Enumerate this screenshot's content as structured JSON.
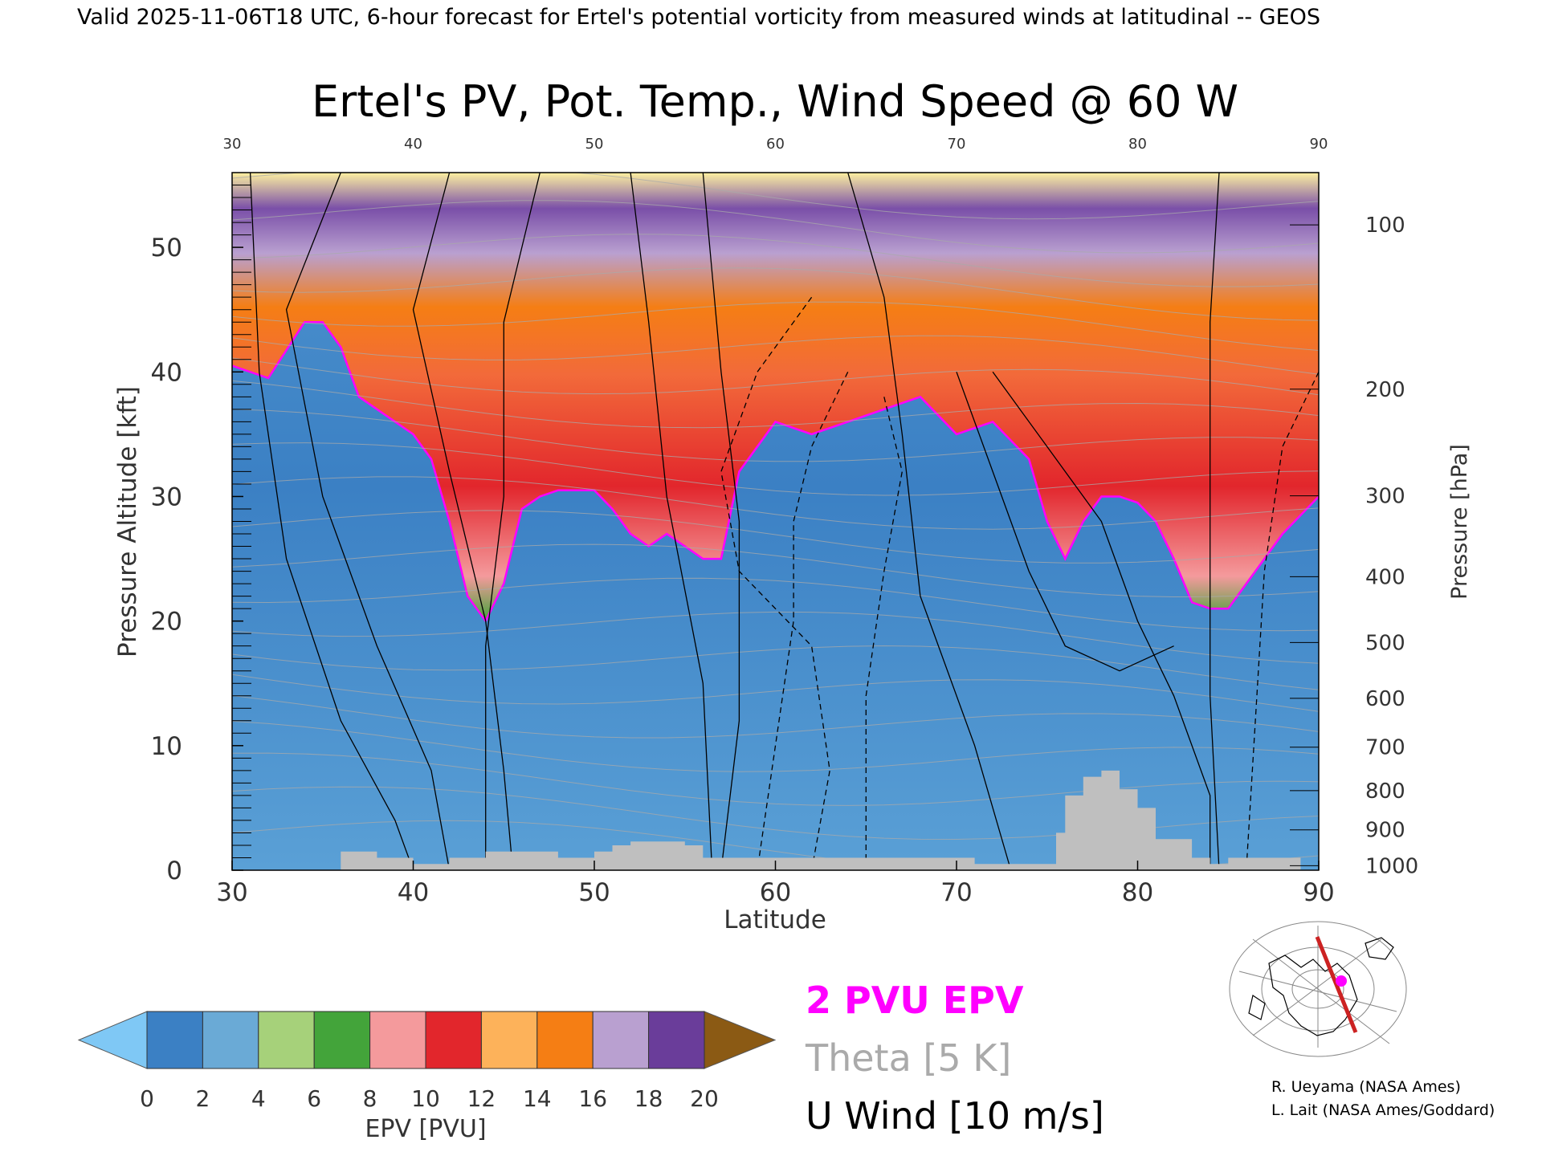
{
  "header": {
    "valid_line": "Valid 2025-11-06T18 UTC, 6-hour forecast for Ertel's potential vorticity from measured winds at latitudinal -- GEOS"
  },
  "chart_data": {
    "type": "heatmap",
    "title": "Ertel's PV, Pot. Temp., Wind Speed @ 60 W",
    "xlabel": "Latitude",
    "ylabel": "Pressure Altitude [kft]",
    "y2label": "Pressure [hPa]",
    "xlim": [
      30,
      90
    ],
    "ylim": [
      0,
      56
    ],
    "x_ticks": [
      30,
      40,
      50,
      60,
      70,
      80,
      90
    ],
    "top_x_ticks": [
      30,
      40,
      50,
      60,
      70,
      80,
      90
    ],
    "y_ticks": [
      0,
      10,
      20,
      30,
      40,
      50
    ],
    "pressure_ticks": [
      1000,
      900,
      800,
      700,
      600,
      500,
      400,
      300,
      200,
      100
    ],
    "colorbar": {
      "label": "EPV [PVU]",
      "ticks": [
        0,
        2,
        4,
        6,
        8,
        10,
        12,
        14,
        16,
        18,
        20
      ],
      "colors": [
        "#3b80c4",
        "#6aaad6",
        "#a6d17a",
        "#43a43a",
        "#f49a9c",
        "#e2262c",
        "#fdb25a",
        "#f57e14",
        "#b9a0d0",
        "#6a3d9a",
        "#fdf5a0"
      ],
      "under_color": "#7fc8f5",
      "over_color": "#8b5a14"
    },
    "tropopause_line": [
      [
        30,
        40.5
      ],
      [
        32,
        39.5
      ],
      [
        34,
        44
      ],
      [
        35,
        44
      ],
      [
        36,
        42
      ],
      [
        37,
        38
      ],
      [
        38,
        37
      ],
      [
        40,
        35
      ],
      [
        41,
        33
      ],
      [
        42,
        28
      ],
      [
        43,
        22
      ],
      [
        44,
        20
      ],
      [
        45,
        23
      ],
      [
        46,
        29
      ],
      [
        47,
        30
      ],
      [
        48,
        30.5
      ],
      [
        50,
        30.5
      ],
      [
        51,
        29
      ],
      [
        52,
        27
      ],
      [
        53,
        26
      ],
      [
        54,
        27
      ],
      [
        55,
        26
      ],
      [
        56,
        25
      ],
      [
        57,
        25
      ],
      [
        58,
        32
      ],
      [
        60,
        36
      ],
      [
        62,
        35
      ],
      [
        64,
        36
      ],
      [
        66,
        37
      ],
      [
        68,
        38
      ],
      [
        70,
        35
      ],
      [
        72,
        36
      ],
      [
        74,
        33
      ],
      [
        75,
        28
      ],
      [
        76,
        25
      ],
      [
        77,
        28
      ],
      [
        78,
        30
      ],
      [
        79,
        30
      ],
      [
        80,
        29.5
      ],
      [
        81,
        28
      ],
      [
        82,
        25
      ],
      [
        83,
        21.5
      ],
      [
        84,
        21
      ],
      [
        85,
        21
      ],
      [
        86,
        23
      ],
      [
        88,
        27
      ],
      [
        90,
        30
      ]
    ],
    "terrain": [
      [
        36,
        1.5
      ],
      [
        38,
        1
      ],
      [
        40,
        0.5
      ],
      [
        42,
        1
      ],
      [
        44,
        1.5
      ],
      [
        46,
        1.5
      ],
      [
        48,
        1
      ],
      [
        50,
        1.5
      ],
      [
        51,
        2
      ],
      [
        52,
        2.3
      ],
      [
        55,
        2
      ],
      [
        56,
        1
      ],
      [
        58,
        1
      ],
      [
        62,
        1
      ],
      [
        64,
        1
      ],
      [
        66,
        1
      ],
      [
        68,
        1
      ],
      [
        70,
        1
      ],
      [
        71,
        0.5
      ],
      [
        75,
        0.5
      ],
      [
        75.5,
        3
      ],
      [
        76,
        6
      ],
      [
        77,
        7.5
      ],
      [
        78,
        8
      ],
      [
        79,
        6.5
      ],
      [
        80,
        5
      ],
      [
        81,
        2.5
      ],
      [
        82,
        2.5
      ],
      [
        83,
        1
      ],
      [
        84,
        0.5
      ],
      [
        85,
        1
      ],
      [
        86,
        1
      ],
      [
        88,
        1
      ]
    ],
    "legend": {
      "pv_line": "2 PVU EPV",
      "theta": "Theta [5 K]",
      "u_wind": "U Wind [10 m/s]",
      "pv_color": "#ff00ff",
      "theta_color": "#aaaaaa",
      "wind_color": "#000000"
    }
  },
  "credits": {
    "line1": "R. Ueyama (NASA Ames)",
    "line2": "L. Lait (NASA Ames/Goddard)"
  },
  "inset_map": {
    "track_color": "#cc2222",
    "marker_color": "#ff00ff"
  }
}
